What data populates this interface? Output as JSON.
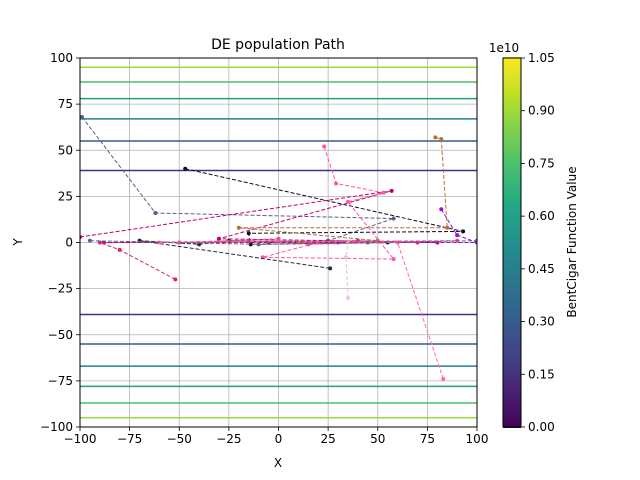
{
  "chart_data": {
    "type": "line",
    "title": "DE population Path",
    "xlabel": "X",
    "ylabel": "Y",
    "xlim": [
      -100,
      100
    ],
    "ylim": [
      -100,
      100
    ],
    "x_ticks": [
      -100,
      -75,
      -50,
      -25,
      0,
      25,
      50,
      75,
      100
    ],
    "y_ticks": [
      -100,
      -75,
      -50,
      -25,
      0,
      25,
      50,
      75,
      100
    ],
    "x_tick_labels": [
      "−100",
      "−75",
      "−50",
      "−25",
      "0",
      "25",
      "50",
      "75",
      "100"
    ],
    "y_tick_labels": [
      "−100",
      "−75",
      "−50",
      "−25",
      "0",
      "25",
      "50",
      "75",
      "100"
    ],
    "grid": true,
    "background": "contour",
    "contour_levels": [
      {
        "y": 95.0,
        "color": "#a0da39"
      },
      {
        "y": 87.0,
        "color": "#4ac16d"
      },
      {
        "y": 78.0,
        "color": "#1fa187"
      },
      {
        "y": 67.0,
        "color": "#277f8e"
      },
      {
        "y": 55.0,
        "color": "#365c8d"
      },
      {
        "y": 39.0,
        "color": "#46327e"
      },
      {
        "y": -39.0,
        "color": "#46327e"
      },
      {
        "y": -55.0,
        "color": "#365c8d"
      },
      {
        "y": -67.0,
        "color": "#277f8e"
      },
      {
        "y": -78.0,
        "color": "#1fa187"
      },
      {
        "y": -87.0,
        "color": "#4ac16d"
      },
      {
        "y": -95.0,
        "color": "#a0da39"
      }
    ],
    "colorbar": {
      "label": "BentCigar Function Value",
      "exponent": "1e10",
      "ticks": [
        0.0,
        0.15,
        0.3,
        0.45,
        0.6,
        0.75,
        0.9,
        1.05
      ],
      "tick_labels": [
        "0.00",
        "0.15",
        "0.30",
        "0.45",
        "0.60",
        "0.75",
        "0.90",
        "1.05"
      ],
      "range": [
        0.0,
        1.05
      ],
      "colormap": "viridis"
    },
    "series": [
      {
        "color": "#5a5a8a",
        "points": [
          [
            -99,
            68
          ],
          [
            -62,
            16
          ],
          [
            58,
            13
          ],
          [
            25,
            1
          ],
          [
            -5,
            0
          ]
        ]
      },
      {
        "color": "#0c0c2a",
        "points": [
          [
            -47,
            40
          ],
          [
            93,
            6
          ],
          [
            -15,
            5
          ],
          [
            -14,
            -1
          ],
          [
            60,
            0
          ]
        ]
      },
      {
        "color": "#c0006a",
        "points": [
          [
            -100,
            3
          ],
          [
            57,
            28
          ],
          [
            -30,
            2
          ],
          [
            80,
            0
          ],
          [
            -88,
            0
          ]
        ]
      },
      {
        "color": "#b86e3a",
        "points": [
          [
            79,
            57
          ],
          [
            82,
            56
          ],
          [
            85,
            8
          ],
          [
            -20,
            8
          ],
          [
            50,
            1
          ],
          [
            10,
            0
          ]
        ]
      },
      {
        "color": "#ff55a8",
        "points": [
          [
            23,
            52
          ],
          [
            29,
            32
          ],
          [
            53,
            27
          ],
          [
            35,
            22
          ],
          [
            58,
            -9
          ],
          [
            -8,
            -8
          ],
          [
            20,
            0
          ]
        ]
      },
      {
        "color": "#9b10c8",
        "points": [
          [
            82,
            18
          ],
          [
            90,
            4
          ],
          [
            100,
            0
          ],
          [
            30,
            0
          ]
        ]
      },
      {
        "color": "#d02a70",
        "points": [
          [
            -52,
            -20
          ],
          [
            -80,
            -4
          ],
          [
            -90,
            0
          ],
          [
            40,
            1
          ],
          [
            70,
            0
          ]
        ]
      },
      {
        "color": "#2a2a3a",
        "points": [
          [
            26,
            -14
          ],
          [
            -70,
            1
          ],
          [
            -40,
            -1
          ],
          [
            -25,
            1
          ],
          [
            55,
            0
          ]
        ]
      },
      {
        "color": "#ff6aae",
        "points": [
          [
            83,
            -74
          ],
          [
            60,
            0
          ],
          [
            0,
            1
          ],
          [
            -60,
            0
          ]
        ]
      },
      {
        "color": "#f0c0d8",
        "points": [
          [
            35,
            -30
          ],
          [
            34,
            -8
          ],
          [
            35,
            0
          ]
        ]
      },
      {
        "color": "#e85090",
        "points": [
          [
            0,
            2
          ],
          [
            -50,
            0
          ],
          [
            90,
            1
          ],
          [
            15,
            -1
          ]
        ]
      },
      {
        "color": "#6060a0",
        "points": [
          [
            -95,
            1
          ],
          [
            -10,
            -1
          ],
          [
            45,
            0
          ],
          [
            100,
            1
          ]
        ]
      }
    ]
  }
}
